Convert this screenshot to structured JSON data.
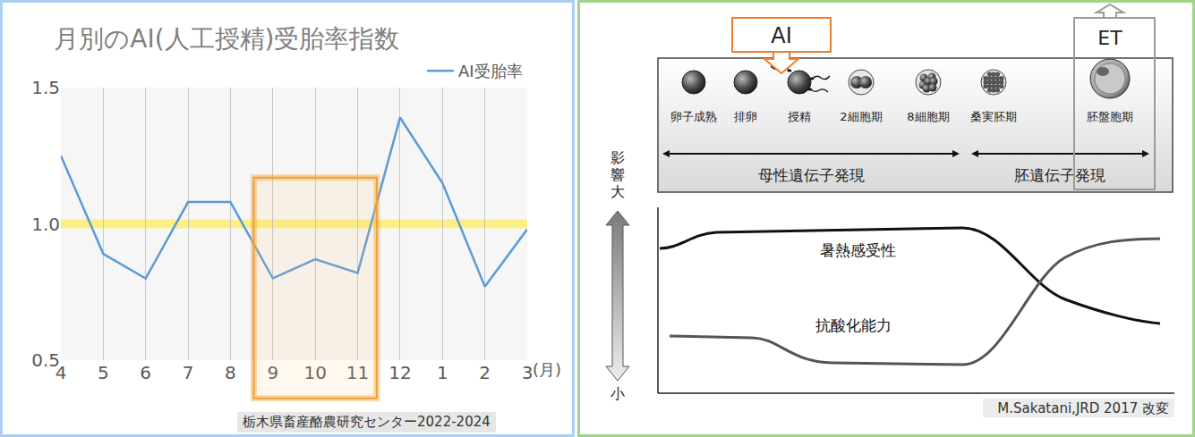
{
  "chart_data": {
    "type": "line",
    "title": "月別のAI(人工授精)受胎率指数",
    "categories": [
      "4",
      "5",
      "6",
      "7",
      "8",
      "9",
      "10",
      "11",
      "12",
      "1",
      "2",
      "3"
    ],
    "series": [
      {
        "name": "AI受胎率",
        "color": "#5b9bd5",
        "values": [
          1.25,
          0.89,
          0.8,
          1.08,
          1.08,
          0.8,
          0.87,
          0.82,
          1.39,
          1.15,
          0.77,
          0.98
        ]
      }
    ],
    "x_label": "(月)",
    "ylim": [
      0.5,
      1.5
    ],
    "yticks": [
      0.5,
      {
        "value": 1,
        "label": "1.0"
      },
      1.5
    ],
    "reference_line": 1,
    "grid": true,
    "legend": "top right",
    "source": "栃木県畜産酪農研究センター2022-2024"
  },
  "diagram": {
    "stages": [
      "卵子成熟",
      "排卵",
      "授精",
      "2細胞期",
      "8細胞期",
      "桑実胚期",
      "胚盤胞期"
    ],
    "ai_label": "AI",
    "et_label": "ET",
    "phases": [
      "母性遺伝子発現",
      "胚遺伝子発現"
    ],
    "axis_high": "影響大",
    "axis_low": "小",
    "curves": [
      "暑熱感受性",
      "抗酸化能力"
    ],
    "source": "M.Sakatani,JRD 2017 改変"
  }
}
